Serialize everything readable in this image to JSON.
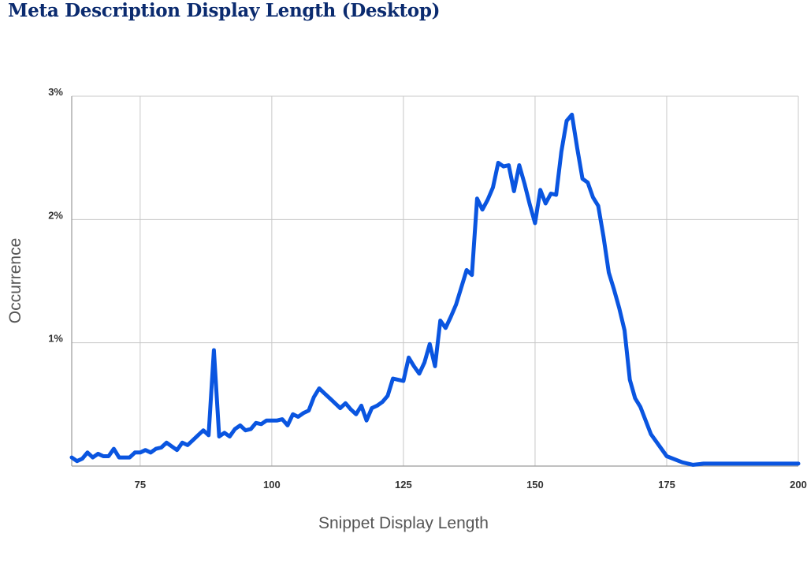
{
  "chart_data": {
    "type": "line",
    "title": "Meta Description Display Length (Desktop)",
    "xlabel": "Snippet Display Length",
    "ylabel": "Occurrence",
    "xlim": [
      62,
      200
    ],
    "ylim": [
      0,
      3
    ],
    "x_ticks": [
      "75",
      "100",
      "125",
      "150",
      "175",
      "200"
    ],
    "y_ticks": [
      "1%",
      "2%",
      "3%"
    ],
    "grid": true,
    "line_color": "#0a55e0",
    "series": [
      {
        "x": [
          62,
          63,
          64,
          65,
          66,
          67,
          68,
          69,
          70,
          71,
          72,
          73,
          74,
          75,
          76,
          77,
          78,
          79,
          80,
          81,
          82,
          83,
          84,
          85,
          86,
          87,
          88,
          89,
          90,
          91,
          92,
          93,
          94,
          95,
          96,
          97,
          98,
          99,
          100,
          101,
          102,
          103,
          104,
          105,
          106,
          107,
          108,
          109,
          110,
          111,
          112,
          113,
          114,
          115,
          116,
          117,
          118,
          119,
          120,
          121,
          122,
          123,
          124,
          125,
          126,
          127,
          128,
          129,
          130,
          131,
          132,
          133,
          134,
          135,
          136,
          137,
          138,
          139,
          140,
          141,
          142,
          143,
          144,
          145,
          146,
          147,
          148,
          149,
          150,
          151,
          152,
          153,
          154,
          155,
          156,
          157,
          158,
          159,
          160,
          161,
          162,
          163,
          164,
          165,
          166,
          167,
          168,
          169,
          170,
          172,
          175,
          178,
          180,
          182,
          185,
          190,
          195,
          200
        ],
        "y": [
          0.07,
          0.04,
          0.06,
          0.11,
          0.07,
          0.1,
          0.08,
          0.08,
          0.14,
          0.07,
          0.07,
          0.07,
          0.11,
          0.11,
          0.13,
          0.11,
          0.14,
          0.15,
          0.19,
          0.16,
          0.13,
          0.19,
          0.17,
          0.21,
          0.25,
          0.29,
          0.25,
          0.94,
          0.24,
          0.27,
          0.24,
          0.3,
          0.33,
          0.29,
          0.3,
          0.35,
          0.34,
          0.37,
          0.37,
          0.37,
          0.38,
          0.33,
          0.42,
          0.4,
          0.43,
          0.45,
          0.56,
          0.63,
          0.59,
          0.55,
          0.51,
          0.47,
          0.51,
          0.46,
          0.42,
          0.49,
          0.37,
          0.47,
          0.49,
          0.52,
          0.57,
          0.71,
          0.7,
          0.69,
          0.88,
          0.81,
          0.75,
          0.84,
          0.99,
          0.81,
          1.18,
          1.12,
          1.21,
          1.31,
          1.45,
          1.59,
          1.55,
          2.17,
          2.08,
          2.16,
          2.26,
          2.46,
          2.43,
          2.44,
          2.23,
          2.44,
          2.29,
          2.12,
          1.97,
          2.24,
          2.13,
          2.21,
          2.2,
          2.55,
          2.8,
          2.85,
          2.58,
          2.33,
          2.3,
          2.18,
          2.11,
          1.86,
          1.57,
          1.43,
          1.28,
          1.1,
          0.7,
          0.55,
          0.48,
          0.26,
          0.08,
          0.03,
          0.01,
          0.02,
          0.02,
          0.02,
          0.02,
          0.02
        ]
      }
    ]
  }
}
